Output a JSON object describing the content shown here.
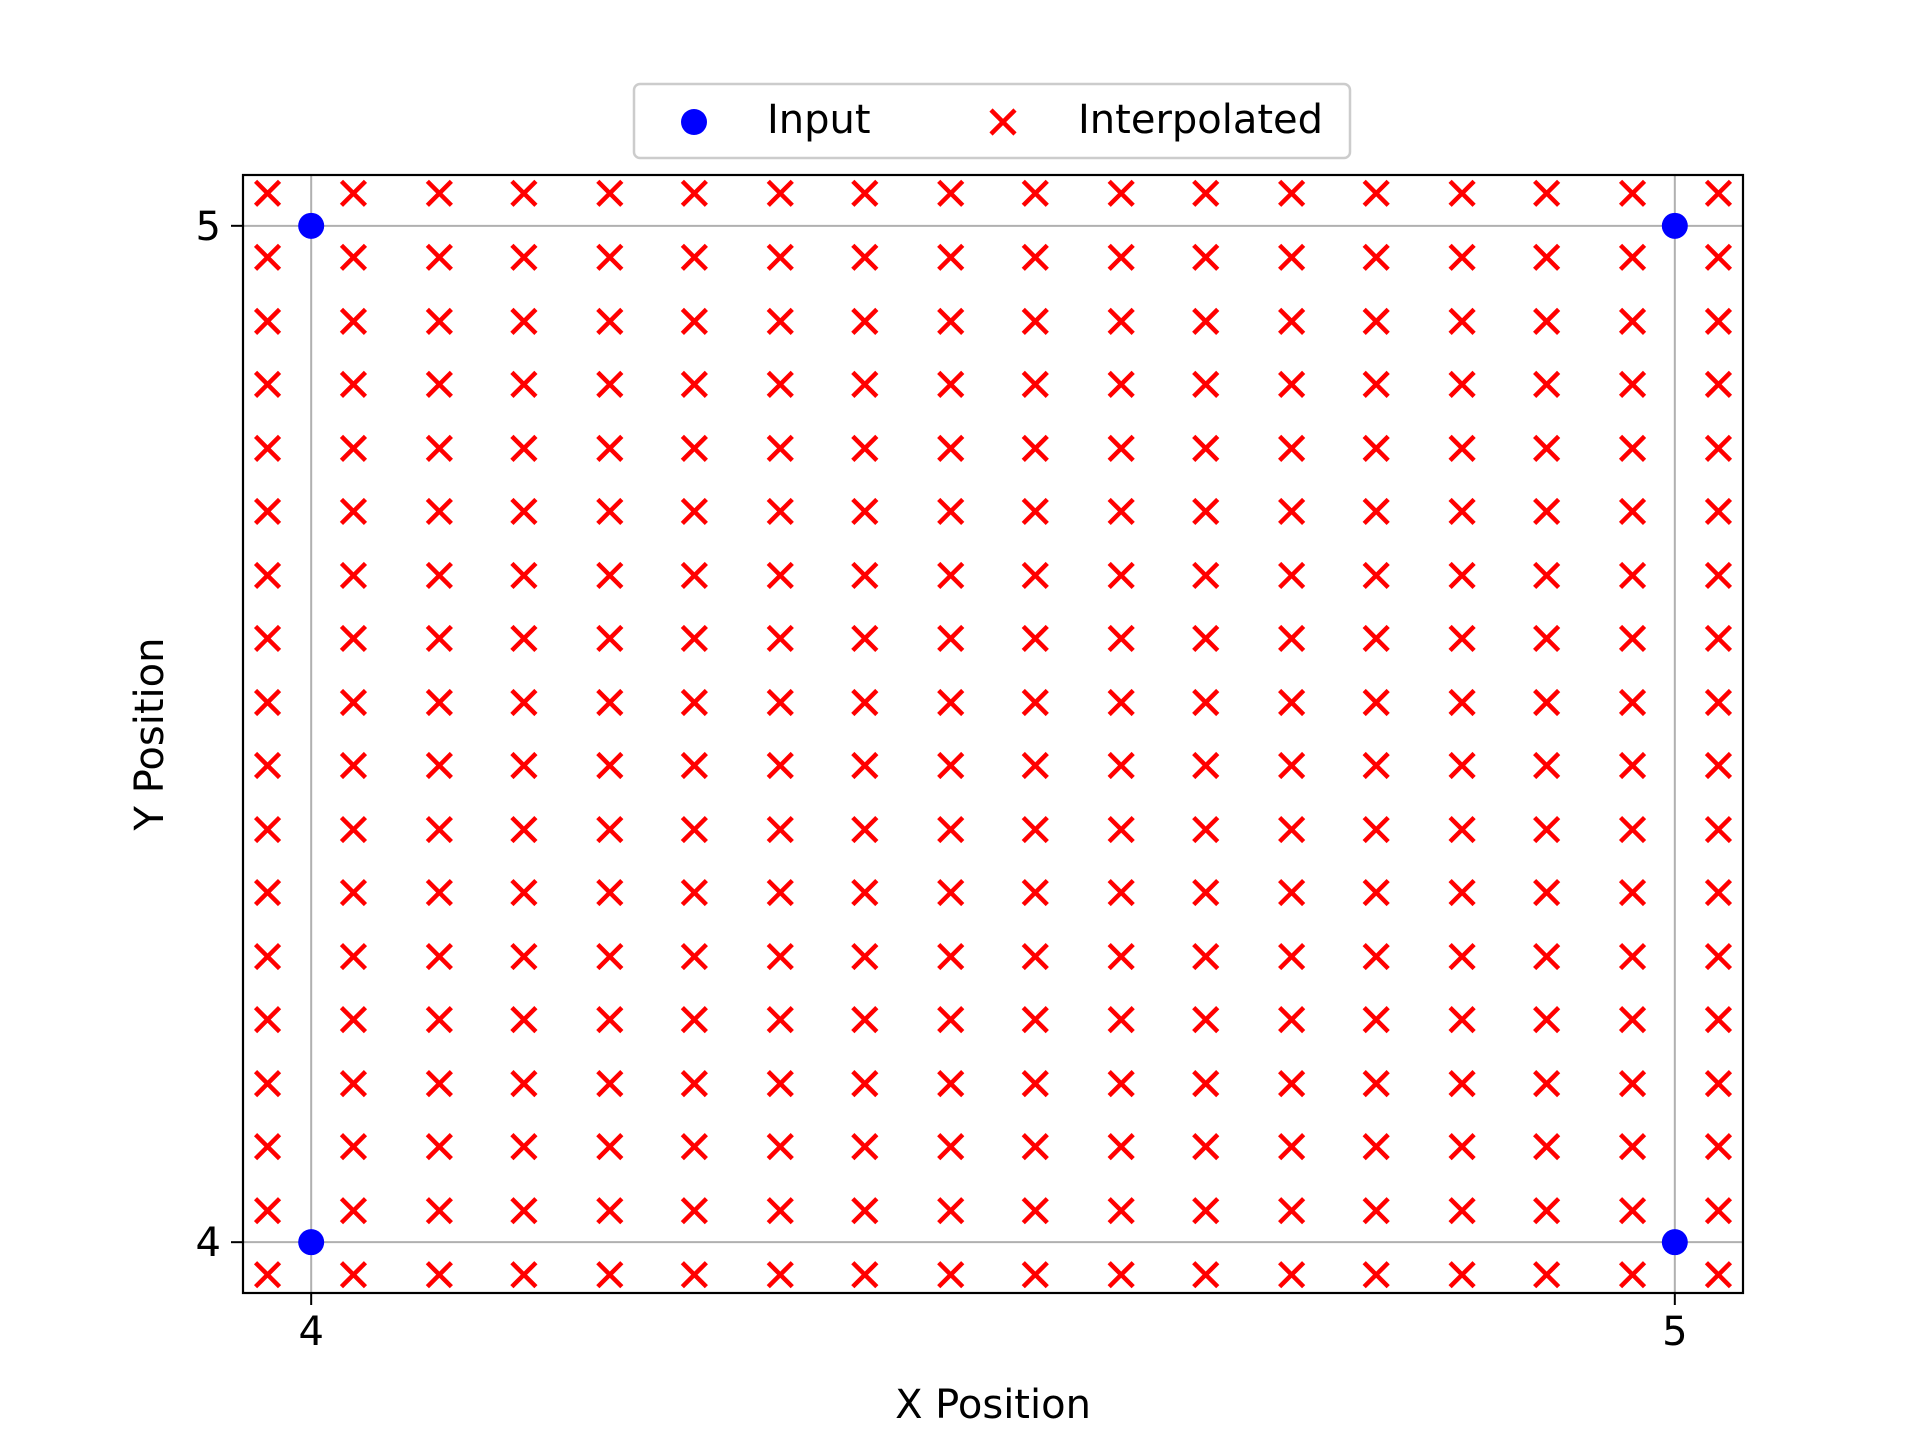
{
  "chart_data": {
    "type": "scatter",
    "title": "",
    "xlabel": "X Position",
    "ylabel": "Y Position",
    "xlim": [
      3.95,
      5.05
    ],
    "ylim": [
      3.95,
      5.05
    ],
    "xticks": [
      4,
      5
    ],
    "yticks": [
      4,
      5
    ],
    "xtick_labels": [
      "4",
      "5"
    ],
    "ytick_labels": [
      "4",
      "5"
    ],
    "grid": true,
    "legend": {
      "placement": "top-center",
      "columns": 2,
      "entries": [
        "Input",
        "Interpolated"
      ]
    },
    "series": [
      {
        "name": "Input",
        "marker": "circle",
        "color": "#0000ff",
        "x": [
          4,
          5,
          4,
          5
        ],
        "y": [
          4,
          4,
          5,
          5
        ]
      },
      {
        "name": "Interpolated",
        "marker": "x",
        "color": "#ff0000",
        "x_grid": [
          3.968,
          4.031,
          4.094,
          4.156,
          4.219,
          4.281,
          4.344,
          4.406,
          4.469,
          4.531,
          4.594,
          4.656,
          4.719,
          4.781,
          4.844,
          4.906,
          4.969,
          5.032
        ],
        "y_grid": [
          3.968,
          4.031,
          4.094,
          4.156,
          4.219,
          4.281,
          4.344,
          4.406,
          4.469,
          4.531,
          4.594,
          4.656,
          4.719,
          4.781,
          4.844,
          4.906,
          4.969,
          5.032
        ]
      }
    ]
  }
}
